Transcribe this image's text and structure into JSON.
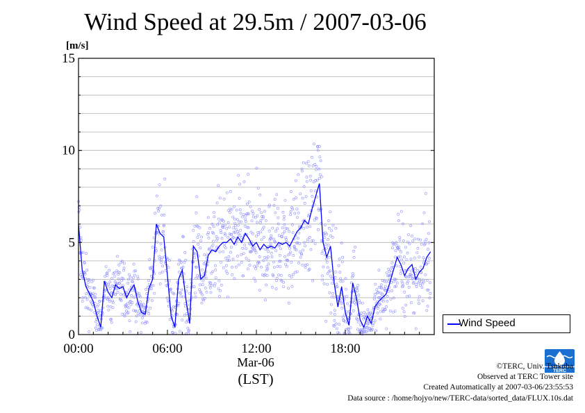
{
  "title": "Wind Speed at 29.5m / 2007-03-06",
  "legend": {
    "label": "Wind Speed"
  },
  "credits": [
    "©TERC, Univ. Tsukuba",
    "Observed at TERC Tower site",
    "Created Automatically at 2007-03-06/23:55:53",
    "Data source : /home/hojyo/new/TERC-data/sorted_data/FLUX.10s.dat"
  ],
  "logo": {
    "text": "TERC",
    "icon": "terc-logo-icon"
  },
  "colors": {
    "line": "#0000ff",
    "points": "#8a8aff",
    "grid": "#b0b0b0"
  },
  "chart_data": {
    "type": "line",
    "title": "Wind Speed at 29.5m / 2007-03-06",
    "ylabel": "[m/s]",
    "xlabel": "(LST)",
    "x_sublabel": "Mar-06",
    "ylim": [
      0,
      15
    ],
    "xlim_hours": [
      0,
      24
    ],
    "y_ticks": [
      "0",
      "5",
      "10",
      "15"
    ],
    "x_ticks": [
      {
        "hour": 0,
        "label": "00:00"
      },
      {
        "hour": 6,
        "label": "06:00"
      },
      {
        "hour": 12,
        "label": "12:00"
      },
      {
        "hour": 18,
        "label": "18:00"
      }
    ],
    "grid": true,
    "legend_position": "right-bottom",
    "series": [
      {
        "name": "Wind Speed",
        "style": "line (10-min mean) over scatter (10-s samples)",
        "hours": [
          0.0,
          0.25,
          0.5,
          0.75,
          1.0,
          1.25,
          1.5,
          1.75,
          2.0,
          2.25,
          2.5,
          2.75,
          3.0,
          3.25,
          3.5,
          3.75,
          4.0,
          4.25,
          4.5,
          4.75,
          5.0,
          5.25,
          5.5,
          5.75,
          6.0,
          6.25,
          6.5,
          6.75,
          7.0,
          7.25,
          7.5,
          7.75,
          8.0,
          8.25,
          8.5,
          8.75,
          9.0,
          9.25,
          9.5,
          9.75,
          10.0,
          10.25,
          10.5,
          10.75,
          11.0,
          11.25,
          11.5,
          11.75,
          12.0,
          12.25,
          12.5,
          12.75,
          13.0,
          13.25,
          13.5,
          13.75,
          14.0,
          14.25,
          14.5,
          14.75,
          15.0,
          15.25,
          15.5,
          15.75,
          16.0,
          16.25,
          16.5,
          16.75,
          17.0,
          17.25,
          17.5,
          17.75,
          18.0,
          18.25,
          18.5,
          18.75,
          19.0,
          19.25,
          19.5,
          19.75,
          20.0,
          20.25,
          20.5,
          20.75,
          21.0,
          21.25,
          21.5,
          21.75,
          22.0,
          22.25,
          22.5,
          22.75,
          23.0,
          23.25,
          23.5,
          23.75
        ],
        "values": [
          6.0,
          3.5,
          2.6,
          2.2,
          1.8,
          1.0,
          0.4,
          2.9,
          2.3,
          2.0,
          2.7,
          2.5,
          2.6,
          2.0,
          2.4,
          2.7,
          1.8,
          1.2,
          1.1,
          2.5,
          3.0,
          6.0,
          5.5,
          5.3,
          3.2,
          1.0,
          0.4,
          3.0,
          3.5,
          1.9,
          0.6,
          4.8,
          4.5,
          3.0,
          3.2,
          4.3,
          4.6,
          4.5,
          4.8,
          5.0,
          5.0,
          5.2,
          4.9,
          5.3,
          5.0,
          5.5,
          5.2,
          4.8,
          5.0,
          4.6,
          4.9,
          4.7,
          4.8,
          4.7,
          5.0,
          4.9,
          5.0,
          4.8,
          5.2,
          5.6,
          5.8,
          6.2,
          6.0,
          6.8,
          7.5,
          8.2,
          5.0,
          4.2,
          4.8,
          2.8,
          1.5,
          2.6,
          1.2,
          0.5,
          2.8,
          2.0,
          0.8,
          0.4,
          1.0,
          0.6,
          1.5,
          1.8,
          2.0,
          2.2,
          2.8,
          3.5,
          4.2,
          3.8,
          3.2,
          3.6,
          3.8,
          3.0,
          3.4,
          3.6,
          4.2,
          4.5
        ],
        "sample_spread": [
          1.2,
          1.0,
          0.8,
          0.7,
          0.7,
          0.6,
          0.5,
          0.7,
          0.7,
          0.7,
          0.7,
          0.7,
          0.7,
          0.7,
          0.7,
          0.7,
          0.6,
          0.5,
          0.5,
          0.8,
          1.0,
          1.4,
          1.3,
          1.3,
          1.2,
          0.8,
          0.6,
          1.2,
          1.2,
          1.0,
          0.8,
          1.4,
          1.4,
          1.3,
          1.3,
          1.4,
          1.4,
          1.4,
          1.4,
          1.4,
          1.4,
          1.4,
          1.4,
          1.4,
          1.4,
          1.4,
          1.4,
          1.4,
          1.4,
          1.4,
          1.4,
          1.4,
          1.4,
          1.4,
          1.4,
          1.4,
          1.4,
          1.4,
          1.5,
          1.5,
          1.6,
          1.7,
          1.7,
          1.8,
          1.9,
          1.9,
          1.6,
          1.5,
          1.5,
          1.2,
          1.0,
          1.2,
          0.9,
          0.6,
          1.1,
          0.9,
          0.7,
          0.5,
          0.6,
          0.5,
          0.7,
          0.8,
          0.8,
          0.9,
          1.1,
          1.3,
          1.4,
          1.4,
          1.3,
          1.3,
          1.4,
          1.3,
          1.3,
          1.4,
          1.5,
          1.5
        ]
      }
    ]
  }
}
